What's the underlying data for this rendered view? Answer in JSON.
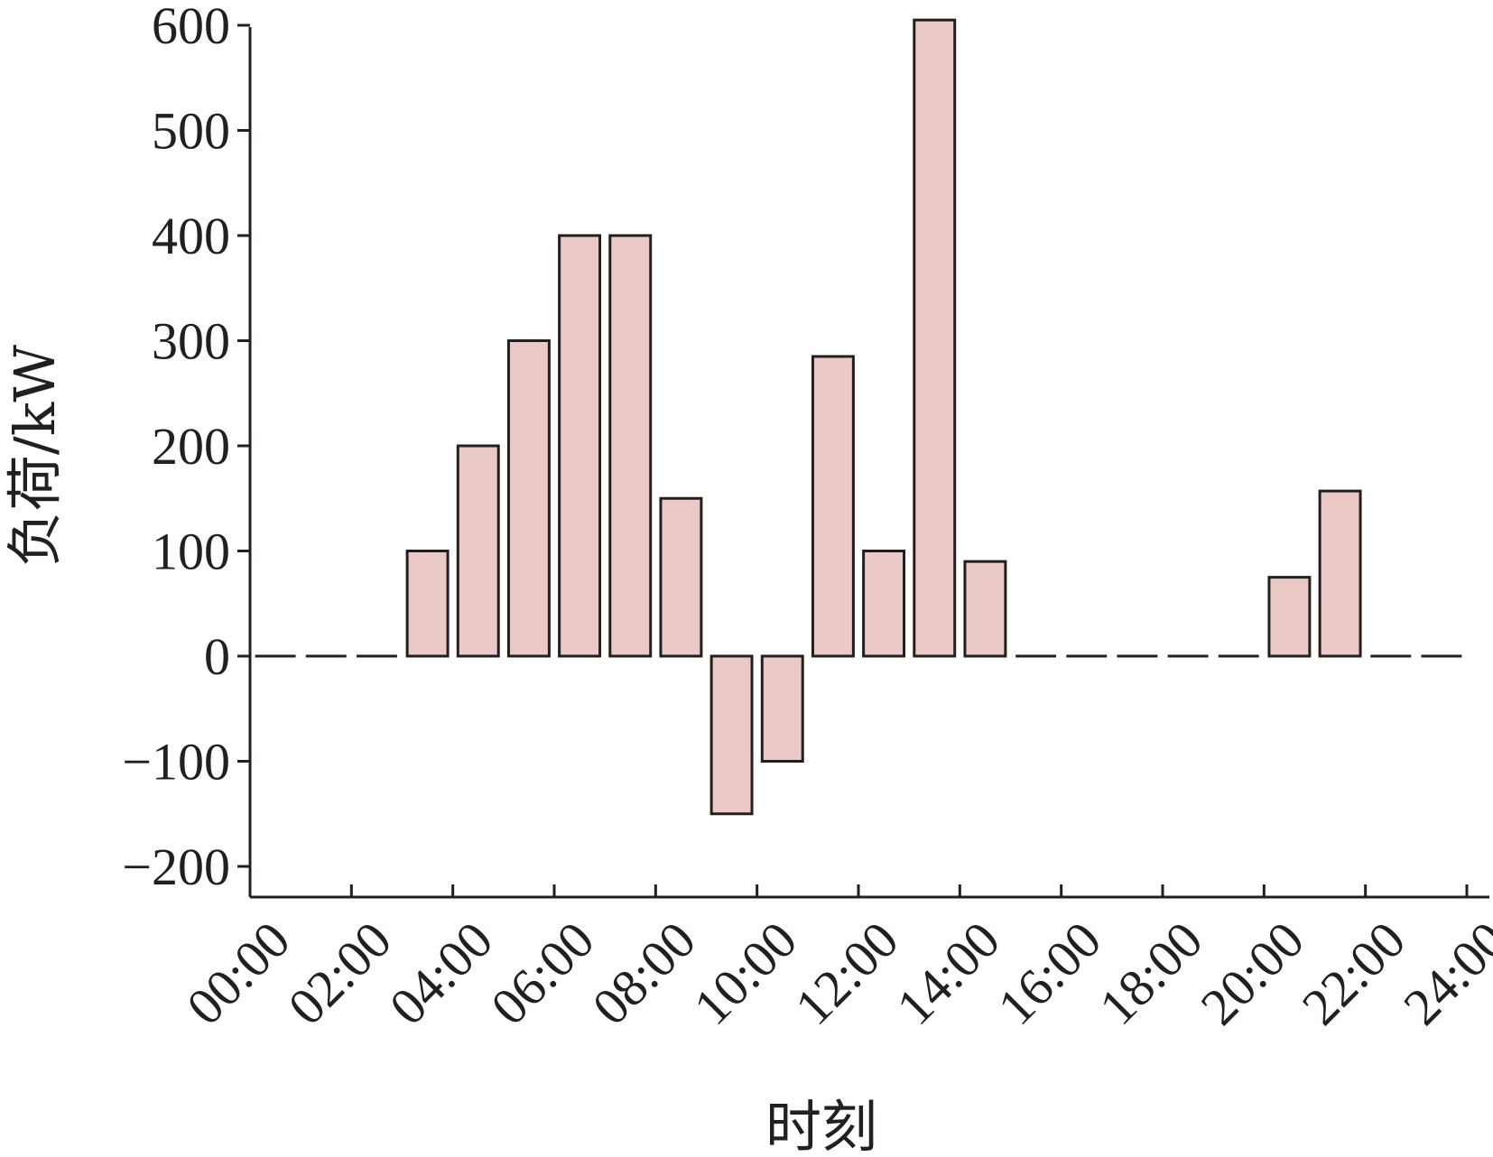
{
  "chart_data": {
    "type": "bar",
    "xlabel": "时刻",
    "ylabel": "负荷/kW",
    "ylim": [
      -230,
      600
    ],
    "yticks": [
      600,
      500,
      400,
      300,
      200,
      100,
      0,
      -100,
      -200
    ],
    "ytick_labels": [
      "600",
      "500",
      "400",
      "300",
      "200",
      "100",
      "0",
      "−100",
      "−200"
    ],
    "xlim": [
      0,
      24
    ],
    "xticks": [
      0,
      2,
      4,
      6,
      8,
      10,
      12,
      14,
      16,
      18,
      20,
      22,
      24
    ],
    "xtick_labels": [
      "00:00",
      "02:00",
      "04:00",
      "06:00",
      "08:00",
      "10:00",
      "12:00",
      "14:00",
      "16:00",
      "18:00",
      "20:00",
      "22:00",
      "24:00"
    ],
    "x": [
      1,
      2,
      3,
      4,
      5,
      6,
      7,
      8,
      9,
      10,
      11,
      12,
      13,
      14,
      15,
      16,
      17,
      18,
      19,
      20,
      21,
      22,
      23,
      24
    ],
    "values": [
      0,
      0,
      0,
      100,
      200,
      300,
      400,
      400,
      150,
      -150,
      -100,
      285,
      100,
      605,
      90,
      0,
      0,
      0,
      0,
      0,
      75,
      157,
      0,
      0
    ],
    "zero_values_drawn_as": "dashed baseline segment",
    "colors": {
      "bar_fill": "#ebc9c6",
      "stroke": "#231f20"
    },
    "grid": false,
    "legend": "none"
  }
}
